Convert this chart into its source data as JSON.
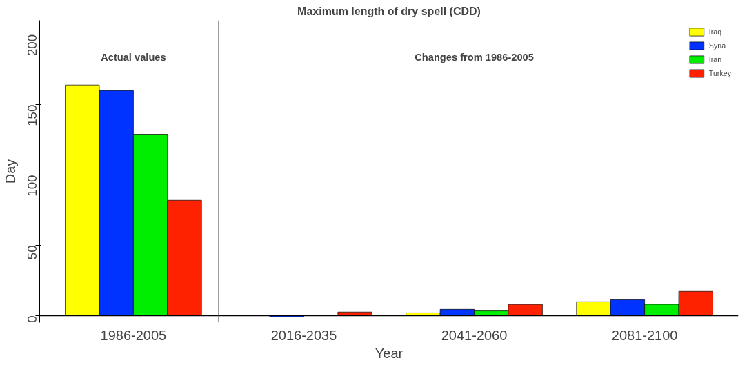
{
  "chart_data": {
    "type": "bar",
    "title": "Maximum length of dry spell (CDD)",
    "xlabel": "Year",
    "ylabel": "Day",
    "categories": [
      "1986-2005",
      "2016-2035",
      "2041-2060",
      "2081-2100"
    ],
    "series": [
      {
        "name": "Iraq",
        "color": "#ffff00",
        "values": [
          164,
          null,
          1.9,
          9.8
        ]
      },
      {
        "name": "Syria",
        "color": "#0033ff",
        "values": [
          160,
          -1,
          4.4,
          11.2
        ]
      },
      {
        "name": "Iran",
        "color": "#00ee00",
        "values": [
          129,
          null,
          3.3,
          8
        ]
      },
      {
        "name": "Turkey",
        "color": "#ff2200",
        "values": [
          82,
          2.5,
          7.9,
          17.2
        ]
      }
    ],
    "annotations": [
      "Actual values",
      "Changes from 1986-2005"
    ],
    "ylim": [
      -5,
      210
    ],
    "yticks": [
      0,
      50,
      100,
      150,
      200
    ],
    "grid": false,
    "legend": "top right"
  }
}
